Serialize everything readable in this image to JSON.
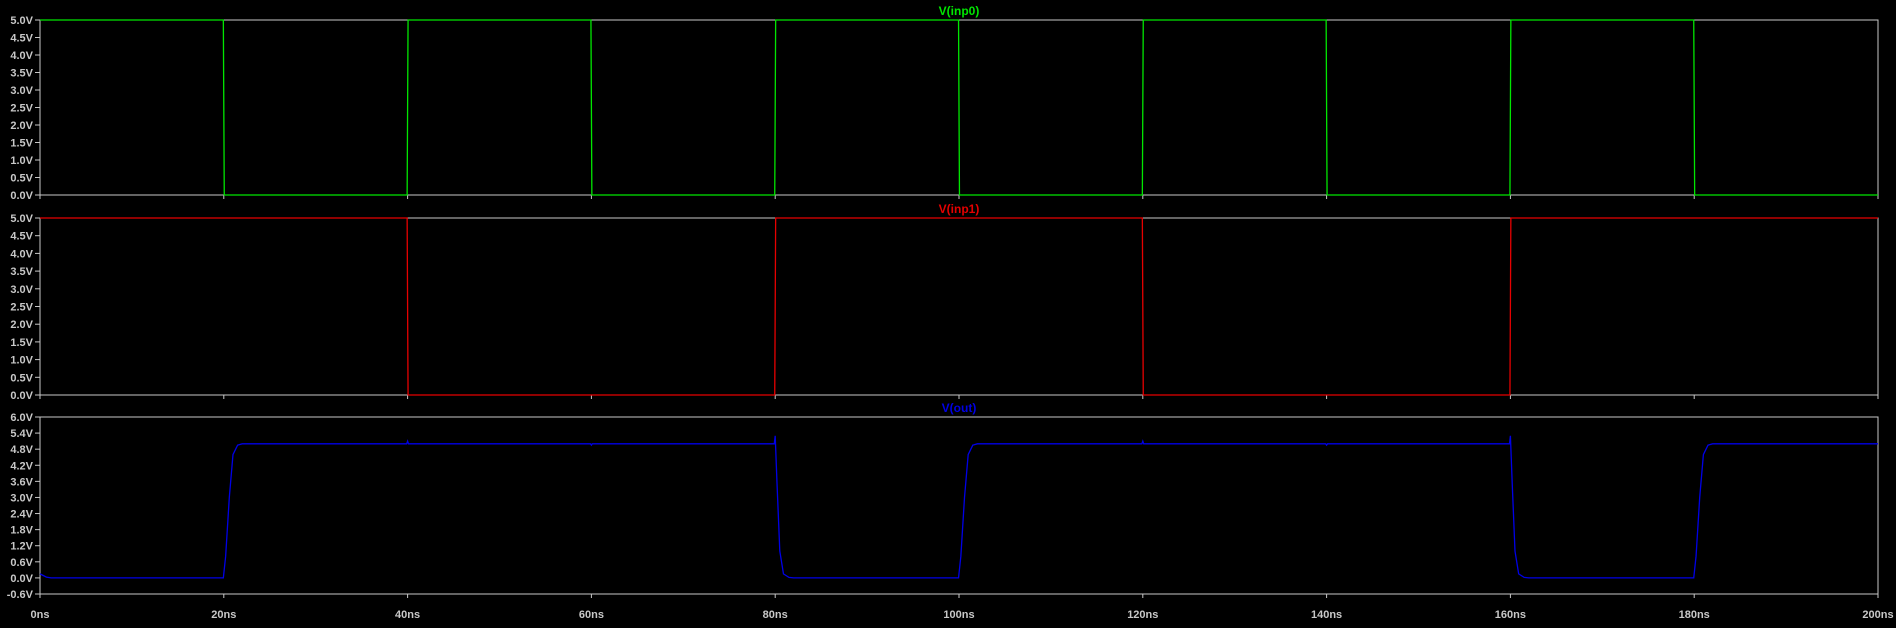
{
  "chart_data": {
    "type": "line",
    "background": "#000000",
    "frame_color": "#c8c8c8",
    "tick_text_color": "#c8c8c8",
    "x_axis": {
      "range_ns": [
        0,
        200
      ],
      "ticks": [
        0,
        20,
        40,
        60,
        80,
        100,
        120,
        140,
        160,
        180,
        200
      ],
      "tick_labels": [
        "0ns",
        "20ns",
        "40ns",
        "60ns",
        "80ns",
        "100ns",
        "120ns",
        "140ns",
        "160ns",
        "180ns",
        "200ns"
      ]
    },
    "panes": [
      {
        "title": "V(inp0)",
        "color": "#00e600",
        "ylim": [
          0,
          5
        ],
        "yticks": [
          0,
          0.5,
          1,
          1.5,
          2,
          2.5,
          3,
          3.5,
          4,
          4.5,
          5
        ],
        "ytick_labels": [
          "0.0V",
          "0.5V",
          "1.0V",
          "1.5V",
          "2.0V",
          "2.5V",
          "3.0V",
          "3.5V",
          "4.0V",
          "4.5V",
          "5.0V"
        ],
        "series": {
          "x": [
            0,
            19.95,
            20.05,
            39.95,
            40.05,
            59.95,
            60.05,
            79.95,
            80.05,
            99.95,
            100.05,
            119.95,
            120.05,
            139.95,
            140.05,
            159.95,
            160.05,
            179.95,
            180.05,
            200
          ],
          "y": [
            5,
            5,
            0,
            0,
            5,
            5,
            0,
            0,
            5,
            5,
            0,
            0,
            5,
            5,
            0,
            0,
            5,
            5,
            0,
            0
          ]
        }
      },
      {
        "title": "V(inp1)",
        "color": "#e60000",
        "ylim": [
          0,
          5
        ],
        "yticks": [
          0,
          0.5,
          1,
          1.5,
          2,
          2.5,
          3,
          3.5,
          4,
          4.5,
          5
        ],
        "ytick_labels": [
          "0.0V",
          "0.5V",
          "1.0V",
          "1.5V",
          "2.0V",
          "2.5V",
          "3.0V",
          "3.5V",
          "4.0V",
          "4.5V",
          "5.0V"
        ],
        "series": {
          "x": [
            0,
            39.95,
            40.05,
            79.95,
            80.05,
            119.95,
            120.05,
            159.95,
            160.05,
            200
          ],
          "y": [
            5,
            5,
            0,
            0,
            5,
            5,
            0,
            0,
            5,
            5
          ]
        }
      },
      {
        "title": "V(out)",
        "color": "#0000e6",
        "ylim": [
          -0.6,
          6.0
        ],
        "yticks": [
          -0.6,
          0.0,
          0.6,
          1.2,
          1.8,
          2.4,
          3.0,
          3.6,
          4.2,
          4.8,
          5.4,
          6.0
        ],
        "ytick_labels": [
          "-0.6V",
          "0.0V",
          "0.6V",
          "1.2V",
          "1.8V",
          "2.4V",
          "3.0V",
          "3.6V",
          "4.2V",
          "4.8V",
          "5.4V",
          "6.0V"
        ],
        "series": {
          "x": [
            0,
            0.3,
            0.7,
            1.2,
            19.95,
            20.2,
            20.6,
            21.0,
            21.5,
            22.0,
            39.9,
            40.0,
            40.1,
            59.9,
            60.0,
            60.1,
            79.9,
            80.0,
            80.2,
            80.5,
            80.9,
            81.5,
            82.0,
            99.95,
            100.2,
            100.6,
            101.0,
            101.5,
            102.0,
            119.9,
            120.0,
            120.1,
            139.9,
            140.0,
            140.1,
            159.9,
            160.0,
            160.2,
            160.5,
            160.9,
            161.5,
            162.0,
            179.95,
            180.2,
            180.6,
            181.0,
            181.5,
            182.0,
            200
          ],
          "y": [
            0.15,
            0.1,
            0.03,
            0.0,
            0.0,
            0.8,
            3.0,
            4.6,
            4.95,
            5.0,
            5.0,
            5.1,
            5.0,
            5.0,
            4.95,
            5.0,
            5.0,
            5.3,
            3.5,
            1.0,
            0.15,
            0.02,
            0.0,
            0.0,
            0.8,
            3.0,
            4.6,
            4.95,
            5.0,
            5.0,
            5.1,
            5.0,
            5.0,
            4.95,
            5.0,
            5.0,
            5.3,
            3.5,
            1.0,
            0.15,
            0.02,
            0.0,
            0.0,
            0.8,
            3.0,
            4.6,
            4.95,
            5.0,
            5.0
          ]
        }
      }
    ]
  }
}
